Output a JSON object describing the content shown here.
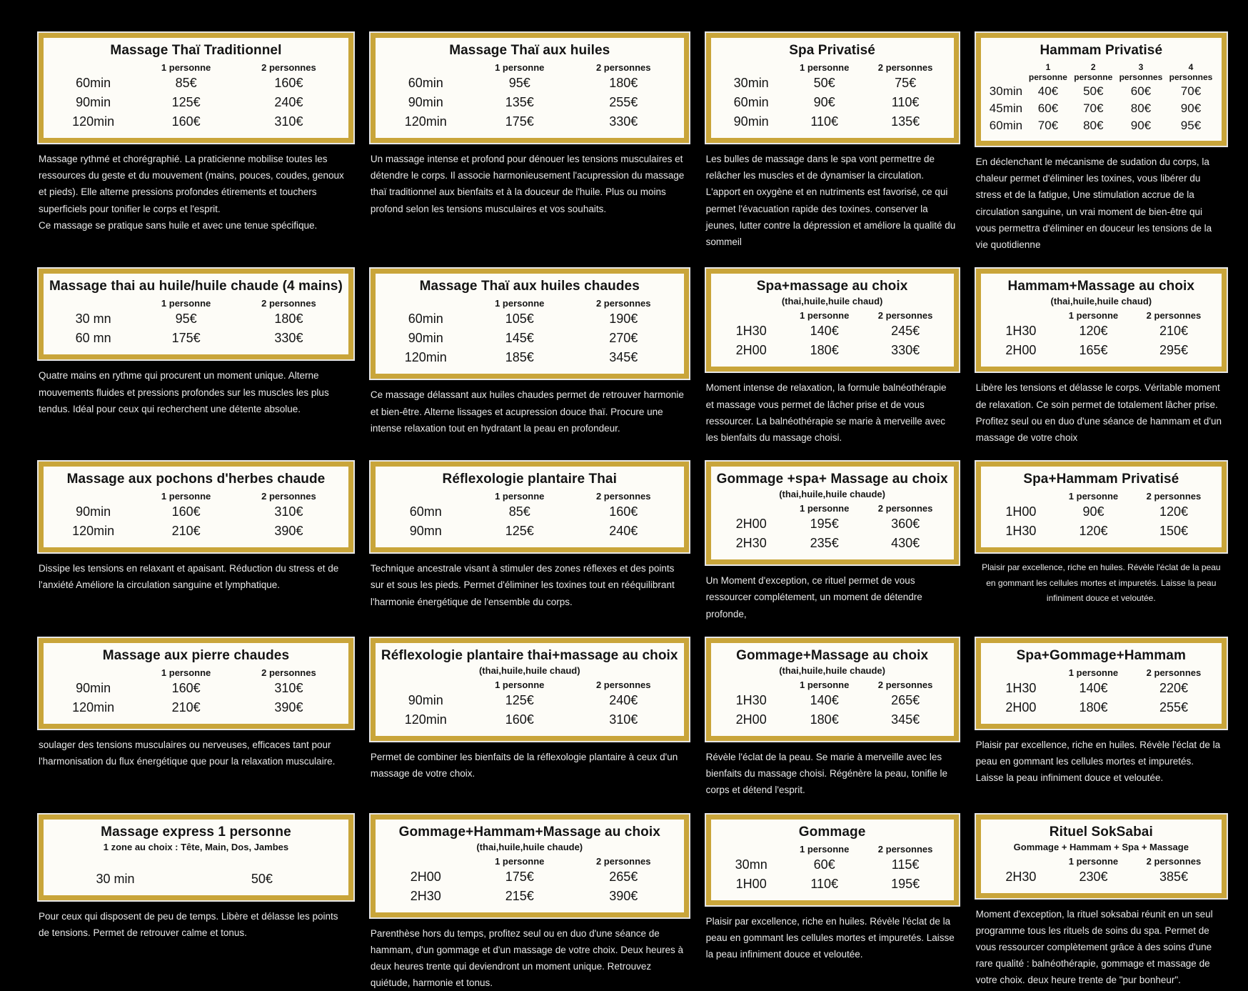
{
  "colors": {
    "background": "#000000",
    "card_border_gold": "#c9a53a",
    "card_background": "#fdfcf7",
    "title_text": "#141414",
    "description_text": "#e9e9e9"
  },
  "cards": [
    {
      "title": "Massage Thaï Traditionnel",
      "subtitle": "",
      "columns": [
        "1 personne",
        "2 personnes"
      ],
      "rows": [
        [
          "60min",
          "85€",
          "160€"
        ],
        [
          "90min",
          "125€",
          "240€"
        ],
        [
          "120min",
          "160€",
          "310€"
        ]
      ],
      "description": "Massage rythmé et chorégraphié. La praticienne mobilise toutes les ressources du geste et du mouvement (mains, pouces, coudes, genoux et pieds). Elle alterne pressions profondes étirements et touchers superficiels pour tonifier le corps et l'esprit.\nCe massage se pratique sans huile et avec une tenue spécifique."
    },
    {
      "title": "Massage Thaï aux huiles",
      "subtitle": "",
      "columns": [
        "1 personne",
        "2 personnes"
      ],
      "rows": [
        [
          "60min",
          "95€",
          "180€"
        ],
        [
          "90min",
          "135€",
          "255€"
        ],
        [
          "120min",
          "175€",
          "330€"
        ]
      ],
      "description": "Un massage intense et profond pour dénouer les tensions musculaires et détendre le corps. Il associe harmonieusement l'acupression du massage  thaï traditionnel aux bienfaits et à la douceur de l'huile. Plus ou moins profond selon les tensions musculaires et vos souhaits."
    },
    {
      "title": "Spa Privatisé",
      "subtitle": "",
      "columns": [
        "1 personne",
        "2 personnes"
      ],
      "rows": [
        [
          "30min",
          "50€",
          "75€"
        ],
        [
          "60min",
          "90€",
          "110€"
        ],
        [
          "90min",
          "110€",
          "135€"
        ]
      ],
      "description": "Les bulles de massage dans le spa vont permettre de relâcher les muscles et de dynamiser la circulation. L'apport en oxygène et en nutriments est favorisé, ce qui permet l'évacuation rapide des toxines. conserver la jeunes,  lutter contre la dépression et améliore la qualité du sommeil"
    },
    {
      "title": "Hammam Privatisé",
      "subtitle": "",
      "columns": [
        "1 personne",
        "2 personne",
        "3 personnes",
        "4 personnes"
      ],
      "rows": [
        [
          "30min",
          "40€",
          "50€",
          "60€",
          "70€"
        ],
        [
          "45min",
          "60€",
          "70€",
          "80€",
          "90€"
        ],
        [
          "60min",
          "70€",
          "80€",
          "90€",
          "95€"
        ]
      ],
      "description": "En déclenchant le mécanisme de sudation du corps, la chaleur permet d'éliminer les toxines, vous libérer du stress et de la fatigue, Une stimulation accrue de la circulation sanguine, un vrai moment de bien-être qui vous permettra d'éliminer en douceur les tensions de la vie quotidienne"
    },
    {
      "title": "Massage thai au huile/huile chaude (4 mains)",
      "subtitle": "",
      "columns": [
        "1 personne",
        "2 personnes"
      ],
      "rows": [
        [
          "30 mn",
          "95€",
          "180€"
        ],
        [
          "60 mn",
          "175€",
          "330€"
        ]
      ],
      "description": "Quatre mains en rythme qui procurent un moment unique. Alterne mouvements fluides et pressions profondes sur les muscles les plus tendus. Idéal pour ceux qui recherchent une détente absolue."
    },
    {
      "title": "Massage Thaï aux huiles chaudes",
      "subtitle": "",
      "columns": [
        "1 personne",
        "2 personnes"
      ],
      "rows": [
        [
          "60min",
          "105€",
          "190€"
        ],
        [
          "90min",
          "145€",
          "270€"
        ],
        [
          "120min",
          "185€",
          "345€"
        ]
      ],
      "description": "Ce massage délassant aux huiles chaudes permet de retrouver harmonie et bien-être. Alterne lissages et acupression douce thaï. Procure une intense relaxation tout en hydratant la peau en profondeur."
    },
    {
      "title": "Spa+massage au choix",
      "subtitle": "(thai,huile,huile chaud)",
      "columns": [
        "1 personne",
        "2 personnes"
      ],
      "rows": [
        [
          "1H30",
          "140€",
          "245€"
        ],
        [
          "2H00",
          "180€",
          "330€"
        ]
      ],
      "description": "Moment intense de relaxation, la formule balnéothérapie et massage vous permet de lâcher prise et de vous ressourcer. La balnéothérapie se marie à merveille avec les bienfaits du massage choisi."
    },
    {
      "title": "Hammam+Massage au choix",
      "subtitle": "(thai,huile,huile chaud)",
      "columns": [
        "1 personne",
        "2 personnes"
      ],
      "rows": [
        [
          "1H30",
          "120€",
          "210€"
        ],
        [
          "2H00",
          "165€",
          "295€"
        ]
      ],
      "description": "Libère les tensions et délasse le corps. Véritable moment de relaxation. Ce soin permet de totalement lâcher prise. Profitez seul ou en duo d'une séance de hammam et d'un massage de votre choix"
    },
    {
      "title": "Massage aux pochons d'herbes chaude",
      "subtitle": "",
      "columns": [
        "1 personne",
        "2 personnes"
      ],
      "rows": [
        [
          "90min",
          "160€",
          "310€"
        ],
        [
          "120min",
          "210€",
          "390€"
        ]
      ],
      "description": "Dissipe les tensions en relaxant et apaisant. Réduction du stress et de l'anxiété Améliore la circulation sanguine et lymphatique."
    },
    {
      "title": "Réflexologie plantaire Thai",
      "subtitle": "",
      "columns": [
        "1 personne",
        "2 personnes"
      ],
      "rows": [
        [
          "60mn",
          "85€",
          "160€"
        ],
        [
          "90mn",
          "125€",
          "240€"
        ]
      ],
      "description": "Technique ancestrale visant à stimuler des zones réflexes et des points sur et sous les pieds. Permet d'éliminer les toxines tout en rééquilibrant l'harmonie énergétique de l'ensemble du corps."
    },
    {
      "title": "Gommage +spa+ Massage au choix",
      "subtitle": "(thai,huile,huile chaude)",
      "columns": [
        "1 personne",
        "2 personnes"
      ],
      "rows": [
        [
          "2H00",
          "195€",
          "360€"
        ],
        [
          "2H30",
          "235€",
          "430€"
        ]
      ],
      "description": "Un Moment d'exception, ce rituel permet de vous ressourcer complétement, un moment de détendre profonde,"
    },
    {
      "title": "Spa+Hammam Privatisé",
      "subtitle": "",
      "columns": [
        "1 personne",
        "2 personnes"
      ],
      "rows": [
        [
          "1H00",
          "90€",
          "120€"
        ],
        [
          "1H30",
          "120€",
          "150€"
        ]
      ],
      "description": "Plaisir par excellence, riche en huiles. Révèle l'éclat de la peau en gommant les cellules mortes et impuretés. Laisse la peau infiniment douce et veloutée.",
      "desc_small": true
    },
    {
      "title": "Massage aux pierre chaudes",
      "subtitle": "",
      "columns": [
        "1 personne",
        "2 personnes"
      ],
      "rows": [
        [
          "90min",
          "160€",
          "310€"
        ],
        [
          "120min",
          "210€",
          "390€"
        ]
      ],
      "description": "soulager des tensions musculaires ou nerveuses, efficaces tant pour l'harmonisation du flux énergétique que pour la relaxation musculaire."
    },
    {
      "title": "Réflexologie plantaire thai+massage au choix",
      "subtitle": "(thai,huile,huile chaud)",
      "columns": [
        "1 personne",
        "2 personnes"
      ],
      "rows": [
        [
          "90min",
          "125€",
          "240€"
        ],
        [
          "120min",
          "160€",
          "310€"
        ]
      ],
      "description": "Permet de combiner les bienfaits de la réflexologie plantaire à ceux d'un massage de votre choix."
    },
    {
      "title": "Gommage+Massage au choix",
      "subtitle": "(thai,huile,huile chaude)",
      "columns": [
        "1 personne",
        "2 personnes"
      ],
      "rows": [
        [
          "1H30",
          "140€",
          "265€"
        ],
        [
          "2H00",
          "180€",
          "345€"
        ]
      ],
      "description": "Révèle l'éclat de la peau. Se marie à merveille avec les bienfaits du massage choisi. Régénère la peau, tonifie le corps et détend l'esprit."
    },
    {
      "title": "Spa+Gommage+Hammam",
      "subtitle": "",
      "columns": [
        "1 personne",
        "2 personnes"
      ],
      "rows": [
        [
          "1H30",
          "140€",
          "220€"
        ],
        [
          "2H00",
          "180€",
          "255€"
        ]
      ],
      "description": "Plaisir par excellence, riche en huiles. Révèle l'éclat de la peau en gommant les cellules mortes et impuretés. Laisse la peau infiniment douce et veloutée."
    },
    {
      "title": "Massage express 1 personne",
      "subtitle": "1 zone au choix : Tête, Main, Dos, Jambes",
      "columns": [],
      "rows": [
        [
          "30 min",
          "50€"
        ]
      ],
      "description": "Pour ceux qui disposent de peu de temps. Libère et délasse les points de tensions. Permet de retrouver calme et tonus."
    },
    {
      "title": "Gommage+Hammam+Massage au choix",
      "subtitle": "(thai,huile,huile chaude)",
      "columns": [
        "1 personne",
        "2 personnes"
      ],
      "rows": [
        [
          "2H00",
          "175€",
          "265€"
        ],
        [
          "2H30",
          "215€",
          "390€"
        ]
      ],
      "description": "Parenthèse hors du temps, profitez seul ou en duo d'une séance de hammam, d'un gommage et d'un massage de votre choix. Deux heures à deux heures trente qui deviendront un moment unique. Retrouvez quiétude, harmonie et tonus."
    },
    {
      "title": "Gommage",
      "subtitle": "",
      "columns": [
        "1 personne",
        "2 personnes"
      ],
      "rows": [
        [
          "30mn",
          "60€",
          "115€"
        ],
        [
          "1H00",
          "110€",
          "195€"
        ]
      ],
      "description": "Plaisir par excellence, riche en huiles. Révèle l'éclat de la peau en gommant les cellules mortes et impuretés. Laisse la peau infiniment douce et veloutée."
    },
    {
      "title": "Rituel SokSabai",
      "subtitle": "Gommage + Hammam + Spa + Massage",
      "columns": [
        "1 personne",
        "2 personnes"
      ],
      "rows": [
        [
          "2H30",
          "230€",
          "385€"
        ]
      ],
      "description": "Moment d'exception, la rituel soksabai réunit en un seul programme tous les rituels de soins du spa. Permet de vous ressourcer complètement grâce à des soins d'une rare qualité : balnéothérapie, gommage et massage de votre choix. deux heure trente de \"pur bonheur\"."
    }
  ]
}
